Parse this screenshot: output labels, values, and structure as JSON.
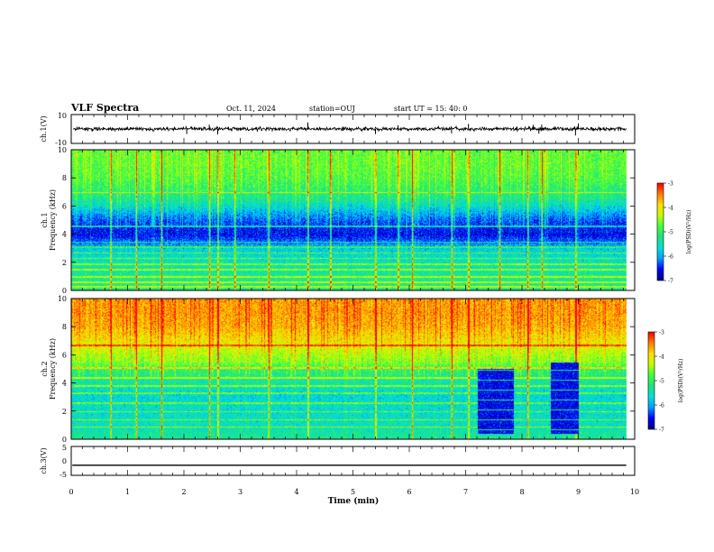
{
  "header": {
    "title": "VLF Spectra",
    "date": "Oct. 11, 2024",
    "station": "station=OUJ",
    "start": "start  UT =   15: 40: 0"
  },
  "colors": {
    "colormap": [
      "#000080",
      "#0000ff",
      "#00a0ff",
      "#00e0e0",
      "#20e080",
      "#40ff40",
      "#c0ff00",
      "#ffe000",
      "#ff8000",
      "#ff0000",
      "#ffffff"
    ],
    "axis": "#000000",
    "background": "#ffffff"
  },
  "chart_data": [
    {
      "type": "line",
      "name": "ch1-waveform",
      "ylabel": "ch.1(V)",
      "ylim": [
        -10,
        10
      ],
      "y_ticks": [
        "10",
        "-10"
      ],
      "xlim": [
        0,
        10
      ],
      "baseline": 0,
      "noise_amplitude": 1.5,
      "spikes": [
        [
          2.05,
          -3.5
        ],
        [
          2.45,
          3
        ],
        [
          2.6,
          -3.8
        ],
        [
          4.2,
          4.5
        ],
        [
          5.4,
          -3.5
        ],
        [
          5.8,
          2.5
        ],
        [
          6.75,
          -3
        ],
        [
          7.05,
          3.5
        ],
        [
          8.2,
          2.8
        ],
        [
          8.3,
          -3.2
        ],
        [
          8.35,
          3
        ],
        [
          8.95,
          -4.5
        ],
        [
          9.0,
          3.8
        ]
      ],
      "grid": false
    },
    {
      "type": "heatmap",
      "name": "ch1-spectrogram",
      "ylabel": "ch.1\nFrequency (kHz)",
      "ylim": [
        0,
        10
      ],
      "y_ticks": [
        "0",
        "2",
        "4",
        "6",
        "8",
        "10"
      ],
      "xlim": [
        0,
        10
      ],
      "value_label": "log(PSD)(V²/Hz)",
      "vlim": [
        -7,
        -3
      ],
      "colorbar_ticks": [
        "-3",
        "-4",
        "-5",
        "-6",
        "-7"
      ],
      "profile_khz": [
        0,
        1,
        2,
        2.5,
        3,
        3.5,
        4,
        4.5,
        5,
        5.5,
        6,
        6.5,
        7,
        8,
        9,
        10
      ],
      "profile_logpsd": [
        -5.2,
        -5.3,
        -5.5,
        -5.6,
        -5.8,
        -6.3,
        -6.6,
        -6.5,
        -6.3,
        -6.0,
        -5.6,
        -5.3,
        -5.1,
        -4.8,
        -4.7,
        -4.7
      ],
      "sferic_times_min": [
        0.7,
        1.15,
        1.6,
        2.45,
        2.6,
        2.9,
        3.5,
        4.2,
        4.6,
        5.4,
        5.8,
        6.05,
        6.75,
        7.05,
        7.6,
        8.1,
        8.35,
        8.95
      ],
      "lines_khz": [
        0.3,
        0.6,
        1.0,
        1.5,
        1.9,
        2.3,
        2.7,
        3.1,
        3.45,
        4.6,
        7.0
      ],
      "quiet_blocks": []
    },
    {
      "type": "heatmap",
      "name": "ch2-spectrogram",
      "ylabel": "ch.2\nFrequency (kHz)",
      "ylim": [
        0,
        10
      ],
      "y_ticks": [
        "0",
        "2",
        "4",
        "6",
        "8",
        "10"
      ],
      "xlim": [
        0,
        10
      ],
      "value_label": "log(PSD)(V²/Hz)",
      "vlim": [
        -7,
        -3
      ],
      "colorbar_ticks": [
        "-3",
        "-4",
        "-5",
        "-6",
        "-7"
      ],
      "profile_khz": [
        0,
        1,
        2,
        2.5,
        3,
        3.5,
        4,
        4.5,
        5,
        5.5,
        6,
        6.5,
        7,
        8,
        9,
        10
      ],
      "profile_logpsd": [
        -5.3,
        -5.5,
        -5.6,
        -5.6,
        -5.7,
        -5.6,
        -5.4,
        -5.2,
        -5.0,
        -4.6,
        -4.4,
        -4.2,
        -4.0,
        -3.7,
        -3.6,
        -3.6
      ],
      "sferic_times_min": [
        0.7,
        1.15,
        1.6,
        2.45,
        2.6,
        3.5,
        4.2,
        5.4,
        6.05,
        6.75,
        7.05,
        8.1,
        8.95
      ],
      "lines_khz": [
        0.9,
        1.4,
        2.0,
        2.6,
        3.3,
        3.8,
        4.4,
        5.1,
        6.7
      ],
      "quiet_blocks": [
        {
          "t0": 7.2,
          "t1": 7.85,
          "f0": 0.4,
          "f1": 5.0,
          "logpsd": -6.6
        },
        {
          "t0": 8.5,
          "t1": 9.0,
          "f0": 0.4,
          "f1": 5.5,
          "logpsd": -6.6
        }
      ]
    },
    {
      "type": "line",
      "name": "ch3-waveform",
      "ylabel": "ch.3(V)",
      "ylim": [
        -5,
        5
      ],
      "y_ticks": [
        "5",
        "0",
        "-5"
      ],
      "xlim": [
        0,
        10
      ],
      "baseline": -1.5,
      "noise_amplitude": 0,
      "spikes": [],
      "grid": false
    }
  ],
  "x_axis": {
    "label": "Time (min)",
    "ticks": [
      "0",
      "1",
      "2",
      "3",
      "4",
      "5",
      "6",
      "7",
      "8",
      "9",
      "10"
    ],
    "data_end_min": 9.85
  }
}
